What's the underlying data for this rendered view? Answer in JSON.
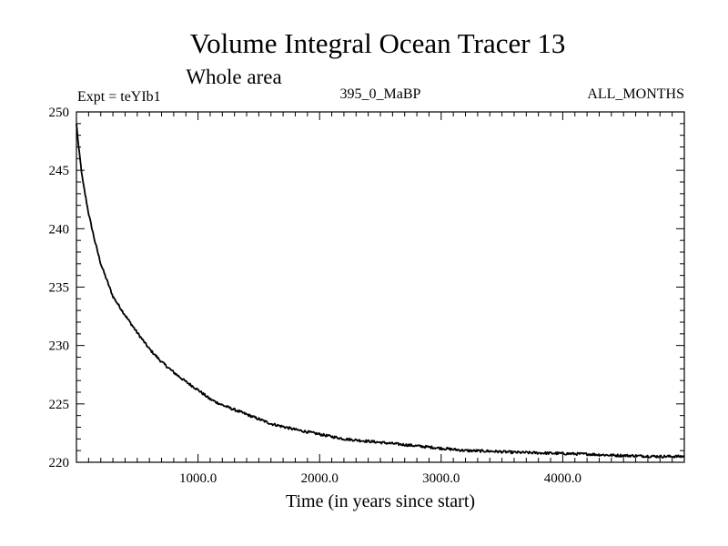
{
  "chart_data": {
    "type": "line",
    "title": "Volume Integral Ocean Tracer 13",
    "subtitle": "Whole area",
    "experiment_label": "Expt = teYIb1",
    "period_label": "395_0_MaBP",
    "months_label": "ALL_MONTHS",
    "xlabel": "Time (in years since start)",
    "ylabel": "",
    "xlim": [
      0,
      5000
    ],
    "ylim": [
      220,
      250
    ],
    "x_ticks": [
      1000,
      2000,
      3000,
      4000
    ],
    "x_tick_labels": [
      "1000.0",
      "2000.0",
      "3000.0",
      "4000.0"
    ],
    "y_ticks": [
      220,
      225,
      230,
      235,
      240,
      245,
      250
    ],
    "y_tick_labels": [
      "220",
      "225",
      "230",
      "235",
      "240",
      "245",
      "250"
    ],
    "grid": false,
    "series": [
      {
        "name": "Volume Integral Ocean Tracer 13",
        "color": "#000000",
        "x": [
          0,
          20,
          50,
          100,
          150,
          200,
          300,
          400,
          500,
          600,
          700,
          800,
          900,
          1000,
          1100,
          1200,
          1300,
          1400,
          1500,
          1600,
          1800,
          2000,
          2200,
          2400,
          2600,
          2800,
          3000,
          3200,
          3400,
          3600,
          3800,
          4000,
          4200,
          4400,
          4600,
          4800,
          5000
        ],
        "y": [
          249.0,
          246.8,
          244.2,
          241.3,
          239.0,
          237.0,
          234.2,
          232.6,
          231.1,
          229.7,
          228.6,
          227.7,
          226.9,
          226.2,
          225.4,
          224.9,
          224.5,
          224.1,
          223.7,
          223.3,
          222.8,
          222.4,
          222.0,
          221.8,
          221.6,
          221.4,
          221.2,
          221.0,
          220.95,
          220.85,
          220.8,
          220.75,
          220.7,
          220.6,
          220.55,
          220.5,
          220.5
        ]
      }
    ]
  }
}
